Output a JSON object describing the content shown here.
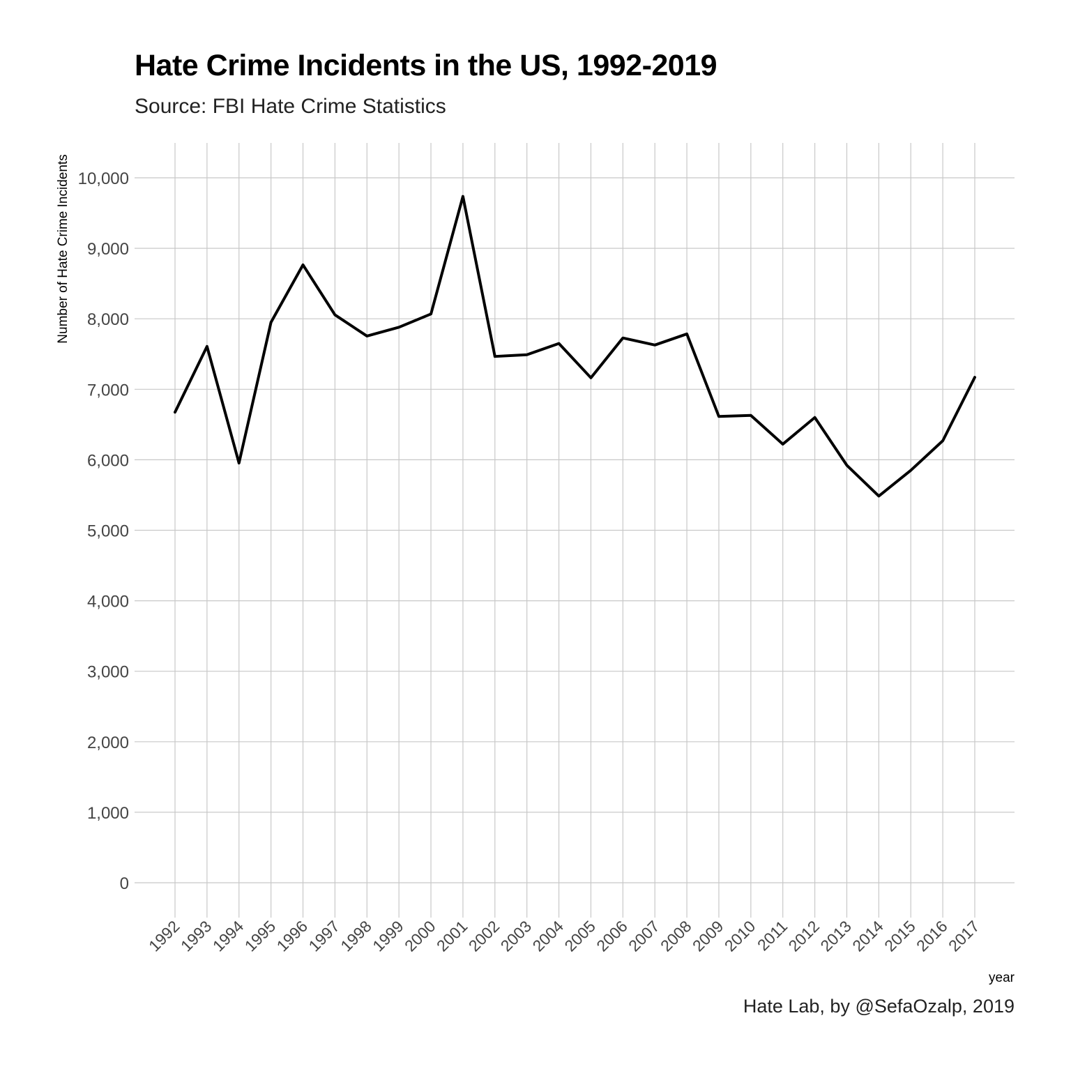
{
  "chart_data": {
    "type": "line",
    "title": "Hate Crime Incidents in the US, 1992-2019",
    "subtitle": "Source: FBI Hate Crime Statistics",
    "caption": "Hate Lab, by @SefaOzalp, 2019",
    "xlabel": "year",
    "ylabel": "Number of Hate Crime Incidents",
    "categories": [
      "1992",
      "1993",
      "1994",
      "1995",
      "1996",
      "1997",
      "1998",
      "1999",
      "2000",
      "2001",
      "2002",
      "2003",
      "2004",
      "2005",
      "2006",
      "2007",
      "2008",
      "2009",
      "2010",
      "2011",
      "2012",
      "2013",
      "2014",
      "2015",
      "2016",
      "2017"
    ],
    "series": [
      {
        "values": [
          6675,
          7608,
          5954,
          7950,
          8765,
          8056,
          7755,
          7880,
          8068,
          9736,
          7466,
          7490,
          7650,
          7163,
          7728,
          7628,
          7785,
          6615,
          6630,
          6222,
          6600,
          5922,
          5485,
          5850,
          6270,
          7170
        ]
      }
    ],
    "ylim": [
      -400,
      10500
    ],
    "yticks": [
      0,
      1000,
      2000,
      3000,
      4000,
      5000,
      6000,
      7000,
      8000,
      9000,
      10000
    ],
    "ytick_labels": [
      "0",
      "1,000",
      "2,000",
      "3,000",
      "4,000",
      "5,000",
      "6,000",
      "7,000",
      "8,000",
      "9,000",
      "10,000"
    ],
    "grid": true,
    "line_color": "#000000",
    "grid_color": "#c8c8c8"
  }
}
